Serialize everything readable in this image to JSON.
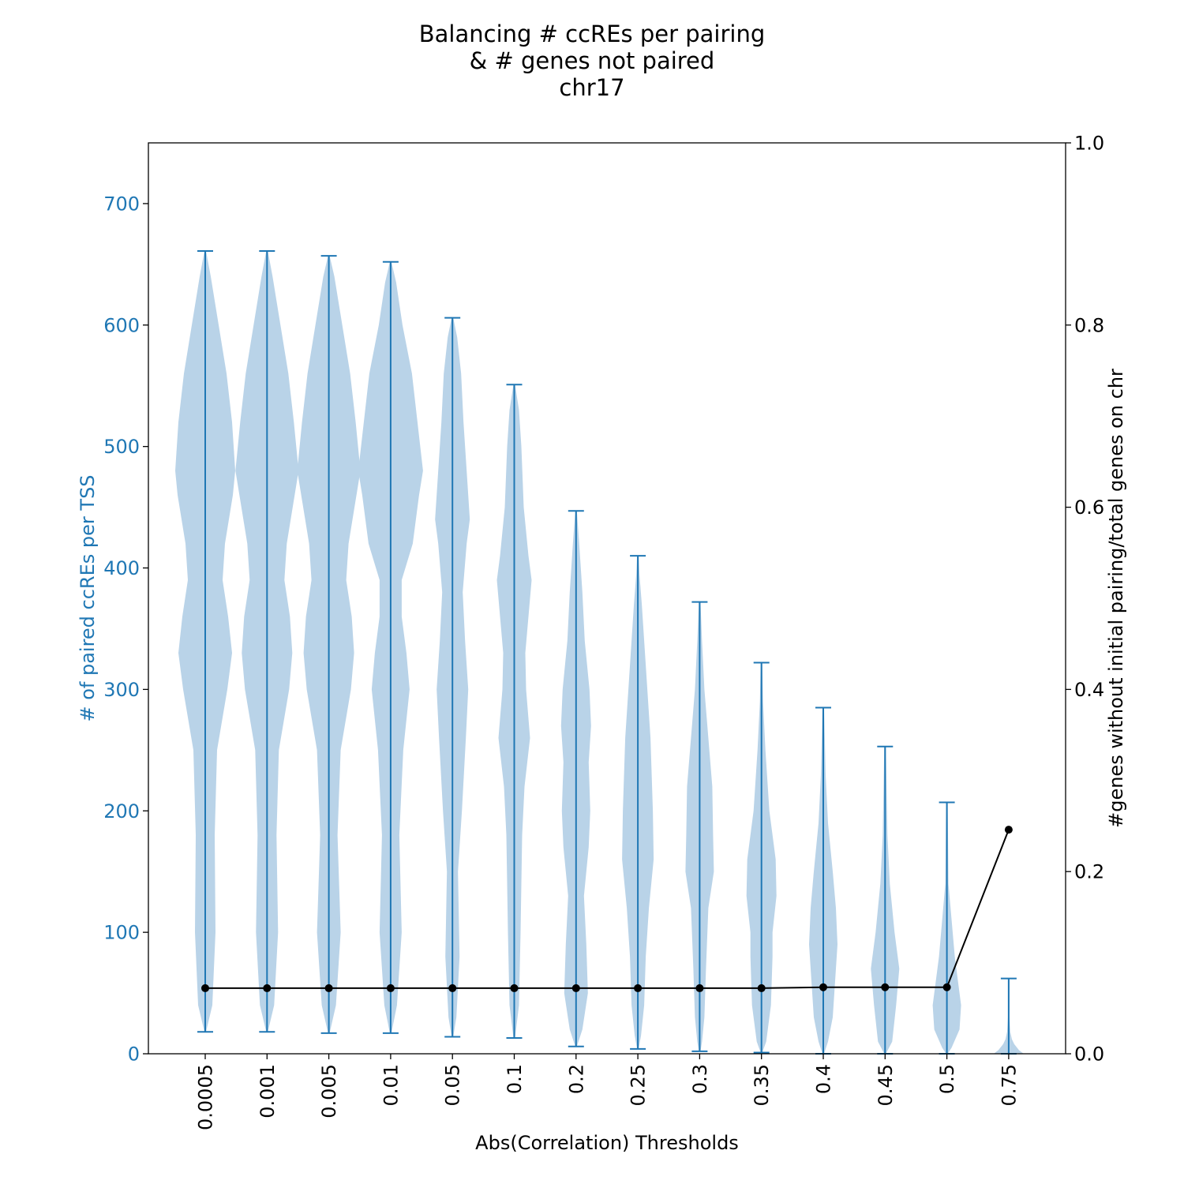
{
  "chart_data": {
    "type": "violin",
    "title_lines": [
      "Balancing # ccREs per pairing",
      "& # genes not paired",
      "chr17"
    ],
    "xlabel": "Abs(Correlation) Thresholds",
    "ylabel_left": "# of paired ccREs per TSS",
    "ylabel_right": "#genes without initial pairing/total genes on chr",
    "categories": [
      "0.0005",
      "0.001",
      "0.005",
      "0.01",
      "0.05",
      "0.1",
      "0.2",
      "0.25",
      "0.3",
      "0.35",
      "0.4",
      "0.45",
      "0.5",
      "0.75"
    ],
    "ylim_left": [
      0,
      750
    ],
    "yticks_left": [
      0,
      100,
      200,
      300,
      400,
      500,
      600,
      700
    ],
    "ylim_right": [
      0,
      1.0
    ],
    "yticks_right": [
      0.0,
      0.2,
      0.4,
      0.6,
      0.8,
      1.0
    ],
    "violins": [
      {
        "min": 18,
        "max": 661,
        "profile": [
          [
            18,
            1
          ],
          [
            40,
            9
          ],
          [
            100,
            13
          ],
          [
            180,
            12
          ],
          [
            250,
            15
          ],
          [
            300,
            28
          ],
          [
            330,
            34
          ],
          [
            360,
            29
          ],
          [
            390,
            22
          ],
          [
            420,
            25
          ],
          [
            460,
            35
          ],
          [
            480,
            38
          ],
          [
            520,
            34
          ],
          [
            560,
            27
          ],
          [
            600,
            17
          ],
          [
            640,
            7
          ],
          [
            661,
            1
          ]
        ]
      },
      {
        "min": 18,
        "max": 661,
        "profile": [
          [
            18,
            1
          ],
          [
            40,
            9
          ],
          [
            100,
            14
          ],
          [
            180,
            12
          ],
          [
            250,
            15
          ],
          [
            300,
            28
          ],
          [
            330,
            32
          ],
          [
            360,
            29
          ],
          [
            390,
            22
          ],
          [
            420,
            25
          ],
          [
            460,
            35
          ],
          [
            480,
            40
          ],
          [
            520,
            34
          ],
          [
            560,
            27
          ],
          [
            600,
            17
          ],
          [
            640,
            7
          ],
          [
            661,
            1
          ]
        ]
      },
      {
        "min": 17,
        "max": 657,
        "profile": [
          [
            17,
            1
          ],
          [
            40,
            9
          ],
          [
            100,
            15
          ],
          [
            180,
            11
          ],
          [
            250,
            15
          ],
          [
            300,
            28
          ],
          [
            330,
            32
          ],
          [
            360,
            29
          ],
          [
            390,
            22
          ],
          [
            420,
            25
          ],
          [
            460,
            35
          ],
          [
            480,
            40
          ],
          [
            520,
            34
          ],
          [
            560,
            27
          ],
          [
            600,
            17
          ],
          [
            640,
            7
          ],
          [
            657,
            1
          ]
        ]
      },
      {
        "min": 17,
        "max": 652,
        "profile": [
          [
            17,
            1
          ],
          [
            40,
            8
          ],
          [
            100,
            14
          ],
          [
            180,
            11
          ],
          [
            250,
            16
          ],
          [
            300,
            24
          ],
          [
            330,
            20
          ],
          [
            360,
            14
          ],
          [
            390,
            14
          ],
          [
            420,
            28
          ],
          [
            460,
            36
          ],
          [
            480,
            41
          ],
          [
            520,
            34
          ],
          [
            560,
            27
          ],
          [
            600,
            15
          ],
          [
            635,
            7
          ],
          [
            652,
            1
          ]
        ]
      },
      {
        "min": 14,
        "max": 606,
        "profile": [
          [
            14,
            1
          ],
          [
            30,
            5
          ],
          [
            80,
            9
          ],
          [
            150,
            7
          ],
          [
            200,
            12
          ],
          [
            260,
            17
          ],
          [
            300,
            20
          ],
          [
            340,
            16
          ],
          [
            380,
            13
          ],
          [
            420,
            18
          ],
          [
            440,
            22
          ],
          [
            480,
            18
          ],
          [
            520,
            14
          ],
          [
            560,
            11
          ],
          [
            590,
            6
          ],
          [
            606,
            1
          ]
        ]
      },
      {
        "min": 13,
        "max": 551,
        "profile": [
          [
            13,
            1
          ],
          [
            40,
            6
          ],
          [
            100,
            8
          ],
          [
            180,
            10
          ],
          [
            220,
            13
          ],
          [
            260,
            20
          ],
          [
            300,
            15
          ],
          [
            330,
            14
          ],
          [
            360,
            18
          ],
          [
            390,
            22
          ],
          [
            410,
            18
          ],
          [
            450,
            12
          ],
          [
            500,
            9
          ],
          [
            530,
            6
          ],
          [
            551,
            1
          ]
        ]
      },
      {
        "min": 6,
        "max": 447,
        "profile": [
          [
            6,
            1
          ],
          [
            20,
            8
          ],
          [
            50,
            15
          ],
          [
            90,
            13
          ],
          [
            130,
            10
          ],
          [
            170,
            16
          ],
          [
            200,
            18
          ],
          [
            240,
            16
          ],
          [
            270,
            19
          ],
          [
            300,
            17
          ],
          [
            340,
            11
          ],
          [
            380,
            8
          ],
          [
            420,
            4
          ],
          [
            447,
            1
          ]
        ]
      },
      {
        "min": 4,
        "max": 410,
        "profile": [
          [
            4,
            1
          ],
          [
            15,
            4
          ],
          [
            40,
            8
          ],
          [
            80,
            10
          ],
          [
            120,
            14
          ],
          [
            160,
            20
          ],
          [
            200,
            19
          ],
          [
            260,
            16
          ],
          [
            300,
            12
          ],
          [
            340,
            8
          ],
          [
            370,
            5
          ],
          [
            395,
            2
          ],
          [
            410,
            1
          ]
        ]
      },
      {
        "min": 2,
        "max": 372,
        "profile": [
          [
            2,
            1
          ],
          [
            10,
            3
          ],
          [
            30,
            6
          ],
          [
            70,
            8
          ],
          [
            120,
            11
          ],
          [
            150,
            18
          ],
          [
            180,
            17
          ],
          [
            220,
            16
          ],
          [
            260,
            11
          ],
          [
            300,
            6
          ],
          [
            340,
            3
          ],
          [
            372,
            1
          ]
        ]
      },
      {
        "min": 1,
        "max": 322,
        "profile": [
          [
            1,
            1
          ],
          [
            10,
            6
          ],
          [
            40,
            12
          ],
          [
            80,
            14
          ],
          [
            100,
            14
          ],
          [
            130,
            19
          ],
          [
            160,
            18
          ],
          [
            200,
            10
          ],
          [
            250,
            5
          ],
          [
            290,
            2
          ],
          [
            322,
            1
          ]
        ]
      },
      {
        "min": 0,
        "max": 285,
        "profile": [
          [
            0,
            1
          ],
          [
            10,
            6
          ],
          [
            30,
            12
          ],
          [
            60,
            15
          ],
          [
            90,
            18
          ],
          [
            120,
            16
          ],
          [
            150,
            12
          ],
          [
            190,
            6
          ],
          [
            230,
            3
          ],
          [
            285,
            1
          ]
        ]
      },
      {
        "min": 0,
        "max": 253,
        "profile": [
          [
            0,
            1
          ],
          [
            10,
            9
          ],
          [
            40,
            14
          ],
          [
            70,
            18
          ],
          [
            100,
            12
          ],
          [
            140,
            6
          ],
          [
            180,
            3
          ],
          [
            253,
            1
          ]
        ]
      },
      {
        "min": 0,
        "max": 207,
        "profile": [
          [
            0,
            1
          ],
          [
            5,
            6
          ],
          [
            20,
            16
          ],
          [
            40,
            18
          ],
          [
            60,
            14
          ],
          [
            80,
            10
          ],
          [
            110,
            6
          ],
          [
            140,
            2
          ],
          [
            207,
            1
          ]
        ]
      },
      {
        "min": 0,
        "max": 62,
        "profile": [
          [
            0,
            19
          ],
          [
            3,
            13
          ],
          [
            8,
            7
          ],
          [
            12,
            4
          ],
          [
            18,
            2
          ],
          [
            30,
            1
          ],
          [
            62,
            1
          ]
        ]
      }
    ],
    "line_series": {
      "values": [
        0.072,
        0.072,
        0.072,
        0.072,
        0.072,
        0.072,
        0.072,
        0.072,
        0.072,
        0.072,
        0.073,
        0.073,
        0.073,
        0.246
      ]
    },
    "colors": {
      "violin_fill": "#b9d3e8",
      "violin_stroke": "#1f77b4",
      "left_axis_text": "#1f77b4",
      "line": "#000000"
    }
  }
}
